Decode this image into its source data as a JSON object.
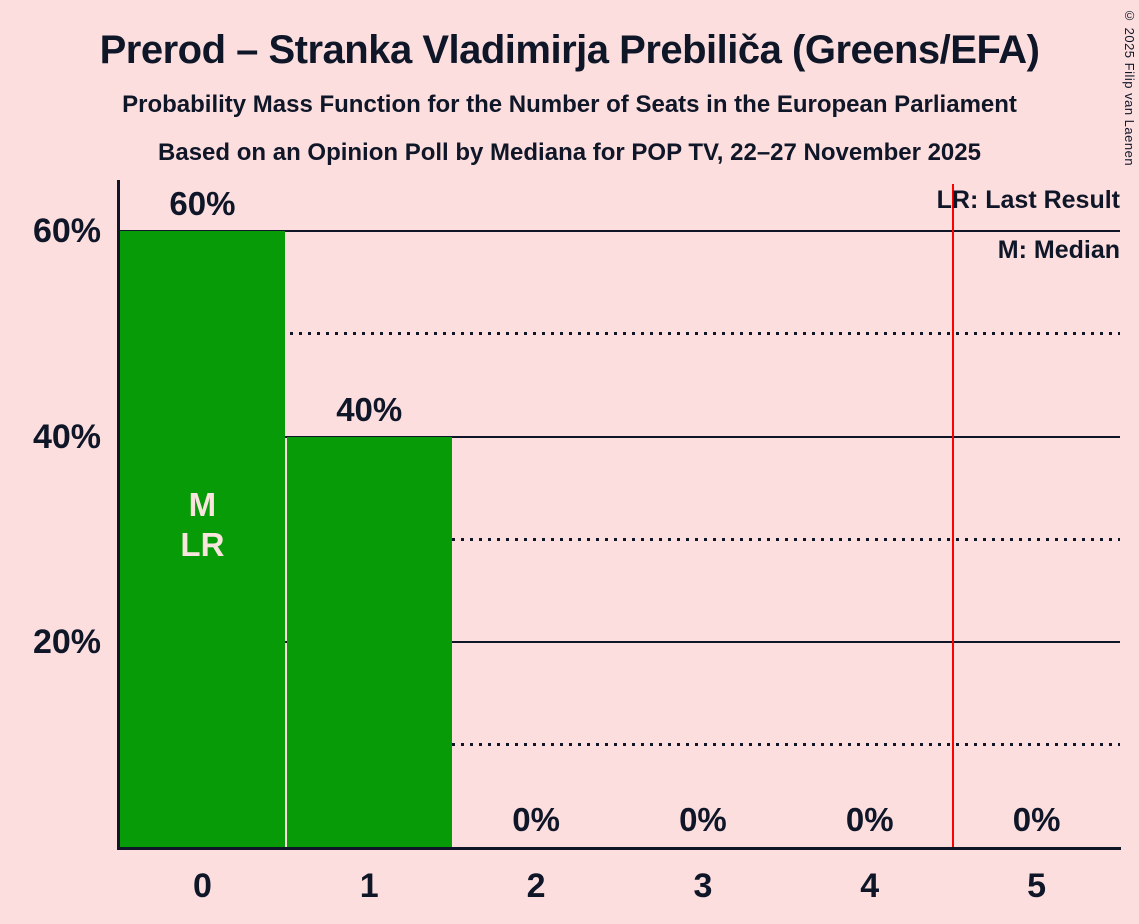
{
  "title": "Prerod – Stranka Vladimirja Prebiliča (Greens/EFA)",
  "subtitle": "Probability Mass Function for the Number of Seats in the European Parliament",
  "poll_line": "Based on an Opinion Poll by Mediana for POP TV, 22–27 November 2025",
  "copyright": "© 2025 Filip van Laenen",
  "legend": {
    "lr": "LR: Last Result",
    "m": "M: Median"
  },
  "chart_data": {
    "type": "bar",
    "categories": [
      "0",
      "1",
      "2",
      "3",
      "4",
      "5"
    ],
    "values": [
      60,
      40,
      0,
      0,
      0,
      0
    ],
    "bar_labels": [
      "60%",
      "40%",
      "0%",
      "0%",
      "0%",
      "0%"
    ],
    "yticks": [
      {
        "value": 20,
        "label": "20%"
      },
      {
        "value": 40,
        "label": "40%"
      },
      {
        "value": 60,
        "label": "60%"
      }
    ],
    "solid_gridlines": [
      20,
      40,
      60
    ],
    "dotted_gridlines": [
      10,
      30,
      50
    ],
    "ylim": [
      0,
      65
    ],
    "median_bar": 0,
    "last_result_bar": 0,
    "bar_annotations": [
      {
        "bar": 0,
        "lines": [
          "M",
          "LR"
        ]
      }
    ],
    "red_line_x": 4.5,
    "legend_position": "top-right",
    "colors": {
      "background": "#FCDEDE",
      "bar": "#089B08",
      "text": "#0E1628",
      "red_line": "#FF0000",
      "annotation": "#FAE5DE"
    }
  }
}
